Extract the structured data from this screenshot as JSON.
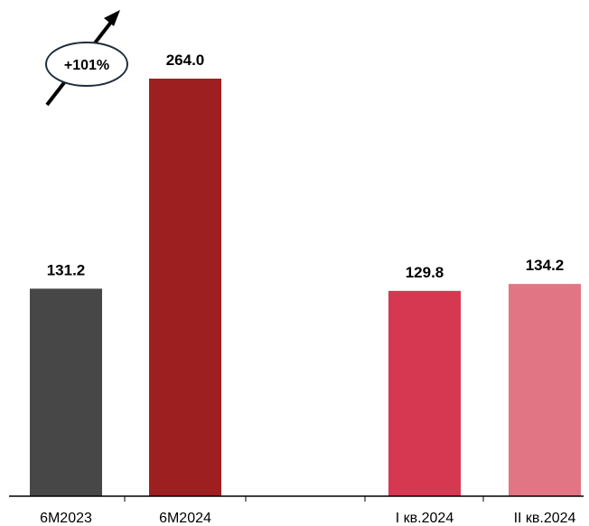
{
  "chart_data": {
    "type": "bar",
    "categories": [
      "6M2023",
      "6M2024",
      "I кв.2024",
      "II кв.2024"
    ],
    "values": [
      131.2,
      264.0,
      129.8,
      134.2
    ],
    "value_labels": [
      "131.2",
      "264.0",
      "129.8",
      "134.2"
    ],
    "colors": [
      "#474747",
      "#9E1F1F",
      "#D63851",
      "#E27584"
    ],
    "annotation": {
      "text": "+101%",
      "from_category": "6M2023",
      "to_category": "6M2024"
    },
    "grid": false,
    "legend": "none"
  }
}
